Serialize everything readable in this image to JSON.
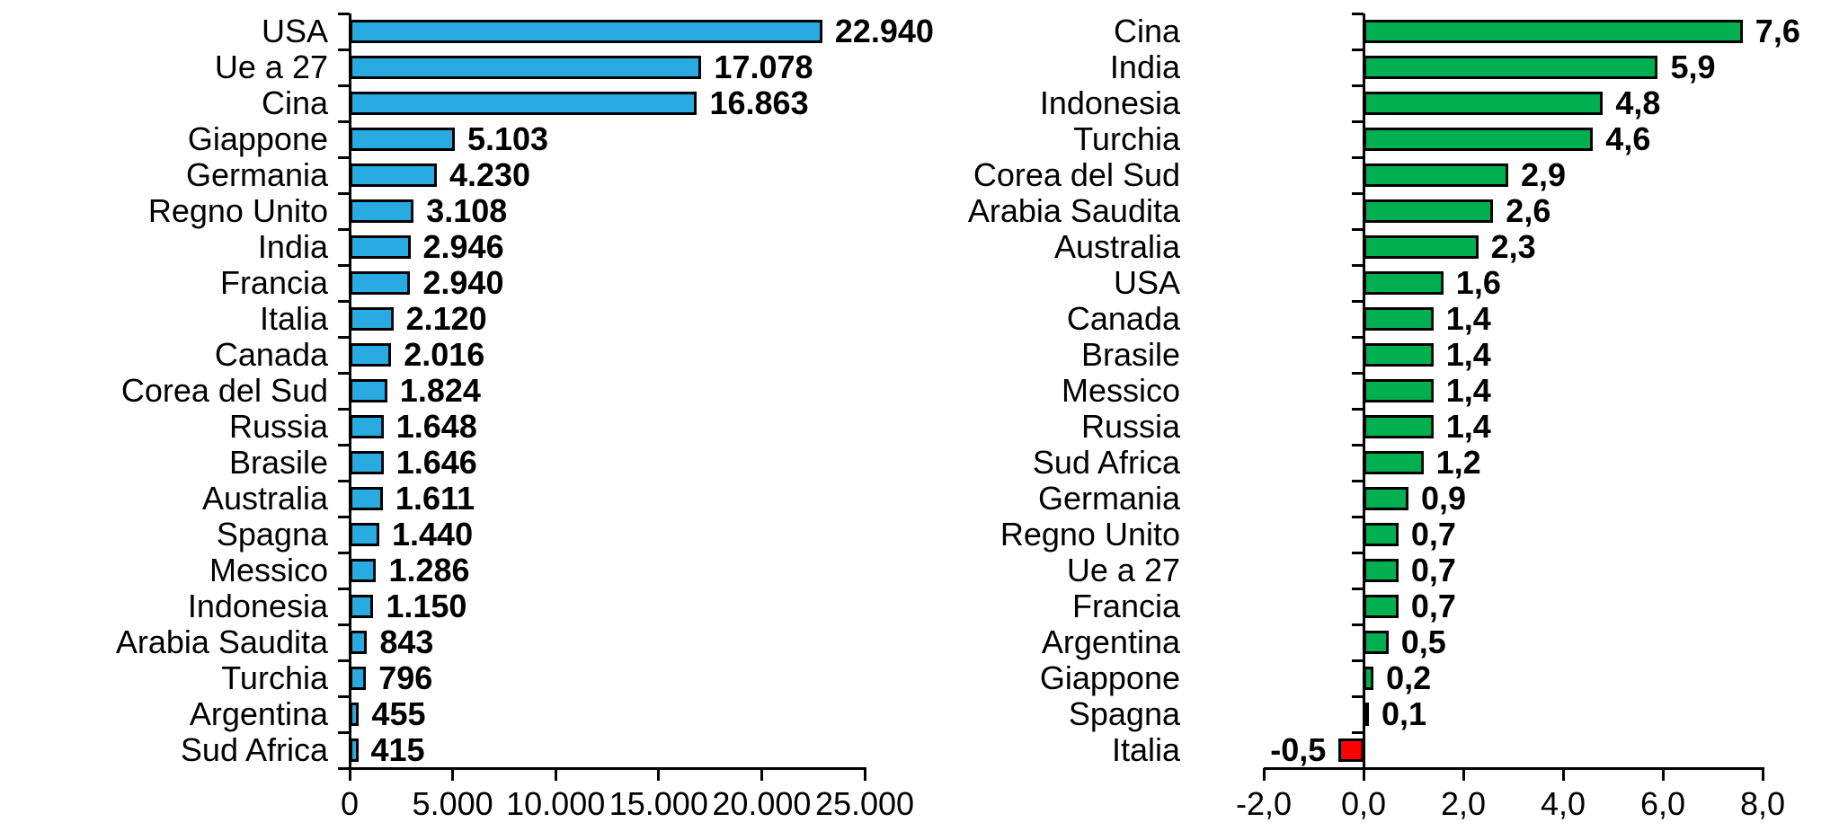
{
  "figure": {
    "background_color": "#ffffff",
    "panel_count": 2
  },
  "chart_data": [
    {
      "type": "bar",
      "orientation": "horizontal",
      "title": "",
      "xlabel": "",
      "ylabel": "",
      "grid": false,
      "legend": null,
      "bar_color": "#29ABE2",
      "negative_bar_color": "#FF0000",
      "bar_border_color": "#000000",
      "categories": [
        "USA",
        "Ue a 27",
        "Cina",
        "Giappone",
        "Germania",
        "Regno Unito",
        "India",
        "Francia",
        "Italia",
        "Canada",
        "Corea del Sud",
        "Russia",
        "Brasile",
        "Australia",
        "Spagna",
        "Messico",
        "Indonesia",
        "Arabia Saudita",
        "Turchia",
        "Argentina",
        "Sud Africa"
      ],
      "values": [
        22940,
        17078,
        16863,
        5103,
        4230,
        3108,
        2946,
        2940,
        2120,
        2016,
        1824,
        1648,
        1646,
        1611,
        1440,
        1286,
        1150,
        843,
        796,
        455,
        415
      ],
      "value_labels": [
        "22.940",
        "17.078",
        "16.863",
        "5.103",
        "4.230",
        "3.108",
        "2.946",
        "2.940",
        "2.120",
        "2.016",
        "1.824",
        "1.648",
        "1.646",
        "1.611",
        "1.440",
        "1.286",
        "1.150",
        "843",
        "796",
        "455",
        "415"
      ],
      "xlim": [
        0,
        25000
      ],
      "x_ticks": [
        0,
        5000,
        10000,
        15000,
        20000,
        25000
      ],
      "x_tick_labels": [
        "0",
        "5.000",
        "10.000",
        "15.000",
        "20.000",
        "25.000"
      ]
    },
    {
      "type": "bar",
      "orientation": "horizontal",
      "title": "",
      "xlabel": "",
      "ylabel": "",
      "grid": false,
      "legend": null,
      "bar_color": "#00B050",
      "negative_bar_color": "#FF0000",
      "bar_border_color": "#000000",
      "categories": [
        "Cina",
        "India",
        "Indonesia",
        "Turchia",
        "Corea del Sud",
        "Arabia Saudita",
        "Australia",
        "USA",
        "Canada",
        "Brasile",
        "Messico",
        "Russia",
        "Sud Africa",
        "Germania",
        "Regno Unito",
        "Ue a 27",
        "Francia",
        "Argentina",
        "Giappone",
        "Spagna",
        "Italia"
      ],
      "values": [
        7.6,
        5.9,
        4.8,
        4.6,
        2.9,
        2.6,
        2.3,
        1.6,
        1.4,
        1.4,
        1.4,
        1.4,
        1.2,
        0.9,
        0.7,
        0.7,
        0.7,
        0.5,
        0.2,
        0.1,
        -0.5
      ],
      "value_labels": [
        "7,6",
        "5,9",
        "4,8",
        "4,6",
        "2,9",
        "2,6",
        "2,3",
        "1,6",
        "1,4",
        "1,4",
        "1,4",
        "1,4",
        "1,2",
        "0,9",
        "0,7",
        "0,7",
        "0,7",
        "0,5",
        "0,2",
        "0,1",
        "-0,5"
      ],
      "xlim": [
        -2,
        8
      ],
      "x_ticks": [
        -2,
        0,
        2,
        4,
        6,
        8
      ],
      "x_tick_labels": [
        "-2,0",
        "0,0",
        "2,0",
        "4,0",
        "6,0",
        "8,0"
      ]
    }
  ]
}
